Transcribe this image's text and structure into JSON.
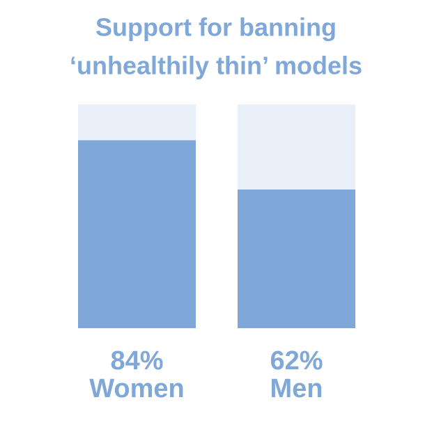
{
  "chart_data": {
    "type": "bar",
    "title": [
      "Support for banning",
      "‘unhealthily thin’ models"
    ],
    "categories": [
      "Women",
      "Men"
    ],
    "values": [
      84,
      62
    ],
    "value_labels": [
      "84%",
      "62%"
    ],
    "color": "#7fa7d8",
    "background_color": "#e9eff8",
    "ylim": [
      0,
      100
    ]
  }
}
